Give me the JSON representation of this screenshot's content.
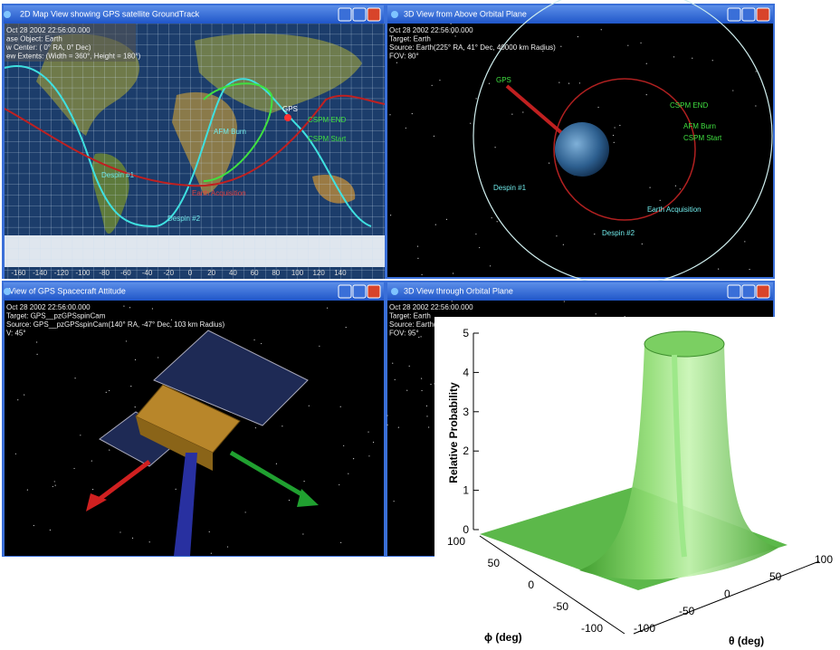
{
  "windows": [
    {
      "title": "2D Map View showing GPS satellite GroundTrack",
      "info": [
        "Oct 28 2002 22:56:00.000",
        "ase Object: Earth",
        "w Center: ( 0° RA, 0° Dec)",
        "ew Extents: (Width = 360°, Height = 180°)"
      ],
      "labels": [
        "GPS",
        "CSPM END",
        "CSPM Start",
        "AFM Burn",
        "Despin #1",
        "Earth Acquisition",
        "Despin #2"
      ],
      "ticks": [
        -160,
        -140,
        -120,
        -100,
        -80,
        -60,
        -40,
        -20,
        0,
        20,
        40,
        60,
        80,
        100,
        120,
        140
      ]
    },
    {
      "title": "3D View from Above Orbital Plane",
      "info": [
        "Oct 28 2002 22:56:00.000",
        "Target: Earth",
        "Source: Earth(225° RA, 41° Dec, 40000 km Radius)",
        "FOV: 80°"
      ],
      "labels": [
        "GPS",
        "CSPM END",
        "AFM Burn",
        "CSPM Start",
        "Despin #1",
        "Earth Acquisition",
        "Despin #2"
      ]
    },
    {
      "title": "View of GPS Spacecraft Attitude",
      "info": [
        "Oct 28 2002 22:56:00.000",
        "Target: GPS__pzGPSspinCam",
        "Source: GPS__pzGPSspinCam(140° RA, -47° Dec,   103 km Radius)",
        "V: 45°"
      ]
    },
    {
      "title": "3D View through Orbital Plane",
      "info": [
        "Oct 28 2002 22:56:00.000",
        "Target: Earth",
        "Source: Earth(",
        "FOV: 95°"
      ]
    }
  ],
  "plot": {
    "zlabel": "Relative Probability",
    "zticks": [
      0,
      1,
      2,
      3,
      4,
      5
    ],
    "phi_ticks": [
      100,
      50,
      0,
      -50,
      -100
    ],
    "theta_ticks": [
      -100,
      -50,
      0,
      50,
      100
    ],
    "phi_label": "ϕ  (deg)",
    "theta_label": "θ (deg)"
  }
}
